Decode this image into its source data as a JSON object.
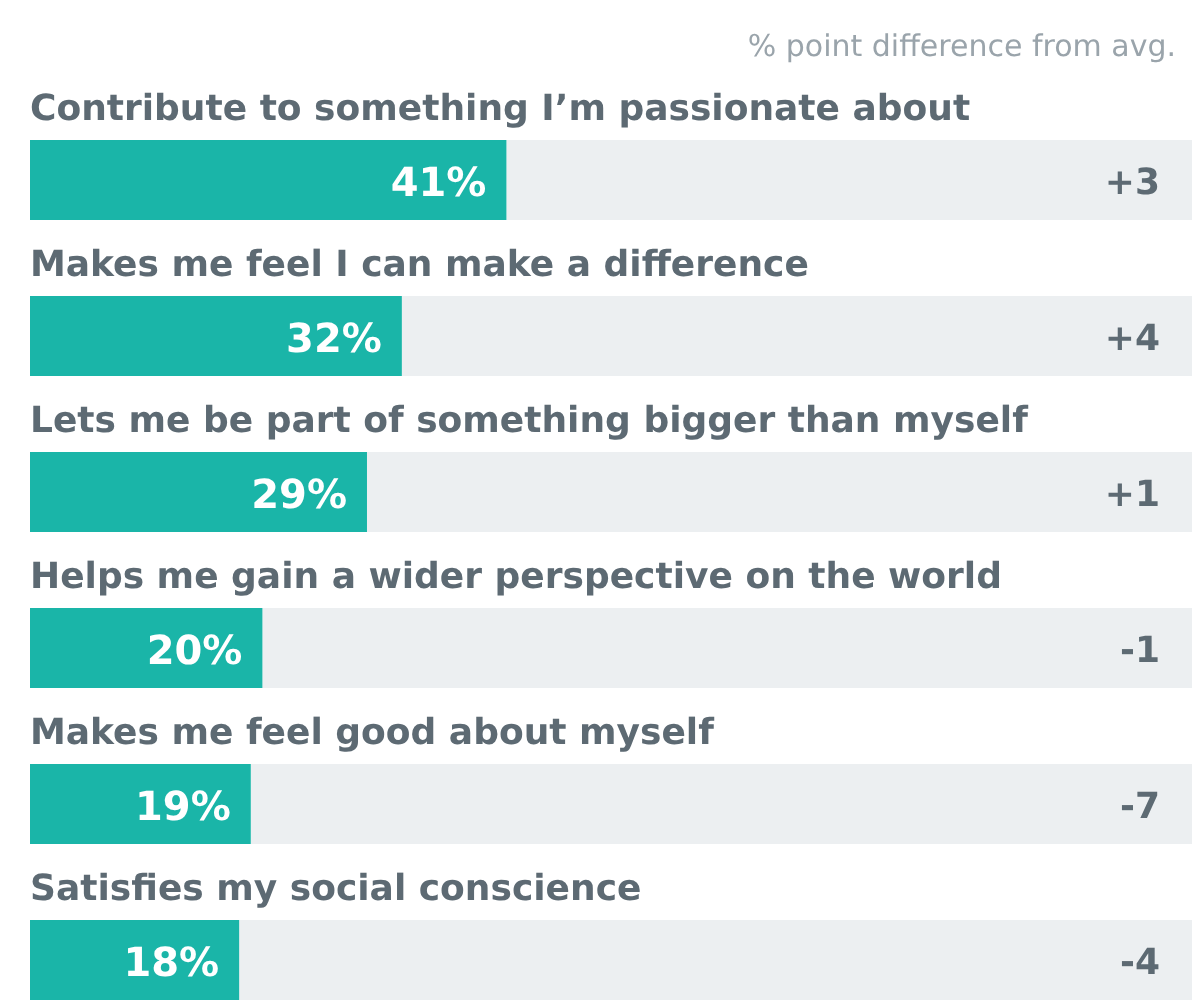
{
  "chart_data": {
    "type": "bar",
    "orientation": "horizontal",
    "categories": [
      "Contribute to something I’m passionate about",
      "Makes me feel I can make a difference",
      "Lets me be part of something bigger than myself",
      "Helps me gain a wider perspective on the world",
      "Makes me feel good about myself",
      "Satisfies my social conscience"
    ],
    "values": [
      41,
      32,
      29,
      20,
      19,
      18
    ],
    "value_labels": [
      "41%",
      "32%",
      "29%",
      "20%",
      "19%",
      "18%"
    ],
    "color": "#1ab5a8",
    "xlim": [
      0,
      100
    ],
    "annotations": [
      "% point difference from avg.",
      "+3",
      "+4",
      "+1",
      "-1",
      "-7",
      "-4"
    ]
  }
}
